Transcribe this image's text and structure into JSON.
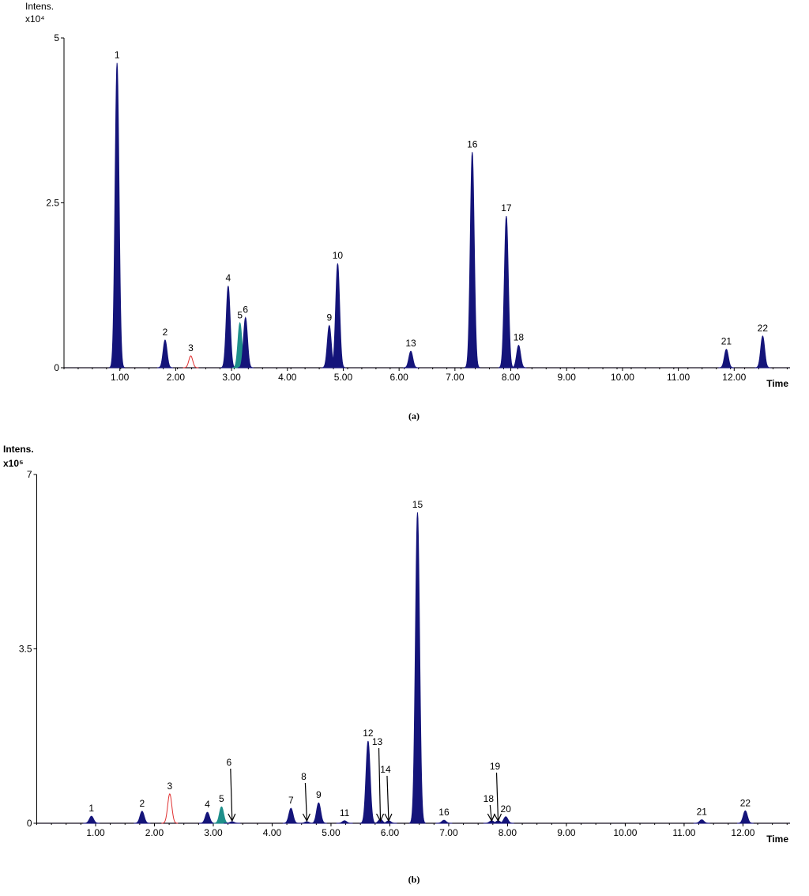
{
  "chart_data": [
    {
      "type": "chromatogram",
      "panel_label": "(a)",
      "y_label": "Intens.",
      "y_multiplier": "x10⁴",
      "x_label": "Time",
      "xlim": [
        0,
        13
      ],
      "ylim": [
        0,
        5
      ],
      "yticks": [
        0,
        2.5,
        5
      ],
      "xticks": [
        {
          "value": 1,
          "label": "1.00"
        },
        {
          "value": 2,
          "label": "2.00"
        },
        {
          "value": 3,
          "label": "3.00"
        },
        {
          "value": 4,
          "label": "4.00"
        },
        {
          "value": 5,
          "label": "5.00"
        },
        {
          "value": 6,
          "label": "6.00"
        },
        {
          "value": 7,
          "label": "7.00"
        },
        {
          "value": 8,
          "label": "8.00"
        },
        {
          "value": 9,
          "label": "9.00"
        },
        {
          "value": 10,
          "label": "10.00"
        },
        {
          "value": 11,
          "label": "11.00"
        },
        {
          "value": 12,
          "label": "12.00"
        }
      ],
      "peaks": [
        {
          "label": "1",
          "time": 0.95,
          "height": 4.62,
          "color": "#14147a"
        },
        {
          "label": "2",
          "time": 1.81,
          "height": 0.42,
          "color": "#14147a"
        },
        {
          "label": "3",
          "time": 2.27,
          "height": 0.18,
          "color": "#e03030",
          "filled": false
        },
        {
          "label": "4",
          "time": 2.94,
          "height": 1.24,
          "color": "#14147a"
        },
        {
          "label": "5",
          "time": 3.15,
          "height": 0.68,
          "color": "#1f8f8a"
        },
        {
          "label": "6",
          "time": 3.25,
          "height": 0.76,
          "color": "#14147a"
        },
        {
          "label": "9",
          "time": 4.75,
          "height": 0.64,
          "color": "#14147a"
        },
        {
          "label": "10",
          "time": 4.9,
          "height": 1.58,
          "color": "#14147a"
        },
        {
          "label": "13",
          "time": 6.21,
          "height": 0.25,
          "color": "#14147a"
        },
        {
          "label": "16",
          "time": 7.31,
          "height": 3.27,
          "color": "#14147a"
        },
        {
          "label": "17",
          "time": 7.92,
          "height": 2.3,
          "color": "#14147a"
        },
        {
          "label": "18",
          "time": 8.14,
          "height": 0.34,
          "color": "#14147a"
        },
        {
          "label": "21",
          "time": 11.86,
          "height": 0.28,
          "color": "#14147a"
        },
        {
          "label": "22",
          "time": 12.51,
          "height": 0.48,
          "color": "#14147a"
        }
      ]
    },
    {
      "type": "chromatogram",
      "panel_label": "(b)",
      "y_label": "Intens.",
      "y_multiplier": "x10⁵",
      "x_label": "Time",
      "xlim": [
        0,
        12.8
      ],
      "ylim": [
        0,
        7
      ],
      "yticks": [
        0,
        3.5,
        7
      ],
      "xticks": [
        {
          "value": 1,
          "label": "1.00"
        },
        {
          "value": 2,
          "label": "2.00"
        },
        {
          "value": 3,
          "label": "3.00"
        },
        {
          "value": 4,
          "label": "4.00"
        },
        {
          "value": 5,
          "label": "5.00"
        },
        {
          "value": 6,
          "label": "6.00"
        },
        {
          "value": 7,
          "label": "7.00"
        },
        {
          "value": 8,
          "label": "8.00"
        },
        {
          "value": 9,
          "label": "9.00"
        },
        {
          "value": 10,
          "label": "10.00"
        },
        {
          "value": 11,
          "label": "11.00"
        },
        {
          "value": 12,
          "label": "12.00"
        }
      ],
      "peaks": [
        {
          "label": "1",
          "time": 0.93,
          "height": 0.14,
          "color": "#14147a"
        },
        {
          "label": "2",
          "time": 1.79,
          "height": 0.24,
          "color": "#14147a"
        },
        {
          "label": "3",
          "time": 2.26,
          "height": 0.59,
          "color": "#e03030",
          "filled": false
        },
        {
          "label": "4",
          "time": 2.9,
          "height": 0.22,
          "color": "#14147a"
        },
        {
          "label": "5",
          "time": 3.14,
          "height": 0.33,
          "color": "#1f8f8a"
        },
        {
          "label": "6",
          "time": 3.32,
          "height": 0.03,
          "color": "#14147a",
          "arrow": true
        },
        {
          "label": "7",
          "time": 4.32,
          "height": 0.3,
          "color": "#14147a"
        },
        {
          "label": "8",
          "time": 4.59,
          "height": 0.03,
          "color": "#14147a",
          "arrow": true
        },
        {
          "label": "9",
          "time": 4.79,
          "height": 0.41,
          "color": "#14147a"
        },
        {
          "label": "11",
          "time": 5.23,
          "height": 0.05,
          "color": "#14147a"
        },
        {
          "label": "12",
          "time": 5.63,
          "height": 1.65,
          "color": "#14147a"
        },
        {
          "label": "13",
          "time": 5.84,
          "height": 0.08,
          "color": "#14147a",
          "arrow": true
        },
        {
          "label": "14",
          "time": 5.98,
          "height": 0.05,
          "color": "#14147a",
          "arrow": true
        },
        {
          "label": "15",
          "time": 6.47,
          "height": 6.24,
          "color": "#14147a"
        },
        {
          "label": "16",
          "time": 6.92,
          "height": 0.06,
          "color": "#14147a"
        },
        {
          "label": "18",
          "time": 7.73,
          "height": 0.05,
          "color": "#14147a",
          "arrow": true
        },
        {
          "label": "19",
          "time": 7.84,
          "height": 0.05,
          "color": "#14147a",
          "arrow": true
        },
        {
          "label": "20",
          "time": 7.97,
          "height": 0.13,
          "color": "#14147a"
        },
        {
          "label": "21",
          "time": 11.3,
          "height": 0.07,
          "color": "#14147a"
        },
        {
          "label": "22",
          "time": 12.04,
          "height": 0.25,
          "color": "#14147a"
        }
      ]
    }
  ]
}
